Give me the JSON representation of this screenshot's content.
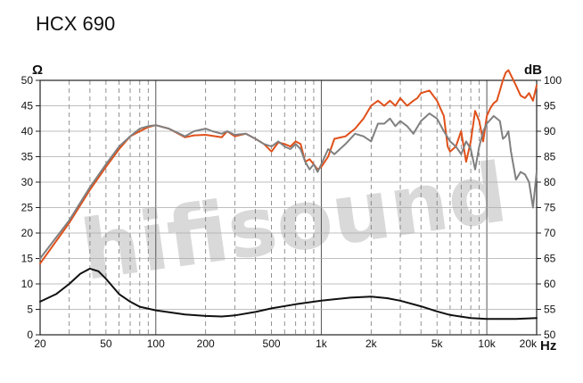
{
  "chart_data": {
    "type": "line",
    "title": "HCX 690",
    "watermark": "hifisound",
    "left_unit": "Ω",
    "right_unit": "dB",
    "x_unit": "Hz",
    "x_scale": "log",
    "xlim": [
      20,
      20000
    ],
    "y_left_lim": [
      0,
      50
    ],
    "y_right_lim": [
      50,
      100
    ],
    "x_ticks": [
      {
        "v": 20,
        "label": "20"
      },
      {
        "v": 50,
        "label": "50"
      },
      {
        "v": 100,
        "label": "100"
      },
      {
        "v": 200,
        "label": "200"
      },
      {
        "v": 500,
        "label": "500"
      },
      {
        "v": 1000,
        "label": "1k"
      },
      {
        "v": 2000,
        "label": "2k"
      },
      {
        "v": 5000,
        "label": "5k"
      },
      {
        "v": 10000,
        "label": "10k"
      },
      {
        "v": 20000,
        "label": "20k"
      }
    ],
    "y_left_ticks": [
      "0",
      "5",
      "10",
      "15",
      "20",
      "25",
      "30",
      "35",
      "40",
      "45",
      "50"
    ],
    "y_right_ticks": [
      "50",
      "55",
      "60",
      "65",
      "70",
      "75",
      "80",
      "85",
      "90",
      "95",
      "100"
    ],
    "grid": true,
    "series": [
      {
        "color": "#e0501a",
        "axis": "right",
        "x": [
          20,
          30,
          40,
          50,
          60,
          70,
          80,
          90,
          100,
          120,
          150,
          170,
          200,
          250,
          270,
          300,
          350,
          400,
          450,
          500,
          550,
          600,
          650,
          700,
          750,
          800,
          850,
          900,
          950,
          1000,
          1100,
          1200,
          1400,
          1600,
          1800,
          2000,
          2200,
          2400,
          2600,
          2800,
          3000,
          3300,
          3600,
          3800,
          4000,
          4500,
          5000,
          5500,
          5800,
          6000,
          6500,
          7000,
          7500,
          8000,
          8500,
          9000,
          9500,
          10000,
          10500,
          11000,
          11500,
          12000,
          12500,
          13000,
          13500,
          14000,
          15000,
          16000,
          17000,
          18000,
          19000,
          20000
        ],
        "values": [
          64,
          72,
          78.5,
          83,
          86.5,
          89,
          90,
          90.8,
          91.2,
          90.5,
          88.8,
          89.2,
          89.3,
          88.8,
          90,
          89,
          89.5,
          88.5,
          87.5,
          86,
          87.8,
          87.5,
          87,
          88,
          87.5,
          84,
          84.5,
          83.5,
          82.5,
          83,
          85,
          88.5,
          89,
          90.5,
          92.5,
          95,
          96,
          95,
          96,
          95,
          96.5,
          95,
          96,
          96.5,
          97.5,
          98,
          96,
          93,
          87,
          86,
          87,
          90,
          84,
          88,
          94,
          92,
          88,
          93,
          94.5,
          95.5,
          96,
          98,
          100,
          101.5,
          102,
          101,
          99,
          97,
          96.5,
          97.5,
          96,
          99
        ]
      },
      {
        "color": "#808080",
        "axis": "right",
        "x": [
          20,
          30,
          40,
          50,
          60,
          70,
          80,
          90,
          100,
          120,
          150,
          170,
          200,
          220,
          250,
          270,
          300,
          350,
          400,
          450,
          500,
          550,
          600,
          650,
          700,
          750,
          800,
          850,
          900,
          950,
          1000,
          1100,
          1200,
          1400,
          1600,
          1800,
          2000,
          2200,
          2400,
          2600,
          2800,
          3000,
          3300,
          3600,
          4000,
          4500,
          5000,
          5500,
          6000,
          6500,
          7000,
          7500,
          8000,
          8500,
          9000,
          9500,
          10000,
          11000,
          12000,
          12500,
          13000,
          13500,
          14000,
          15000,
          16000,
          17000,
          18000,
          19000,
          20000
        ],
        "values": [
          65,
          72.5,
          79,
          83.5,
          87,
          89,
          90.5,
          91,
          91.2,
          90.5,
          89,
          90,
          90.5,
          90,
          89.5,
          90,
          89.3,
          89.5,
          88.5,
          87.5,
          87,
          88,
          87,
          86.5,
          87.5,
          86.5,
          84,
          82.5,
          83.5,
          82,
          83.5,
          86.5,
          85.5,
          87.5,
          89.5,
          89,
          88,
          91.5,
          91.5,
          92.5,
          91,
          92,
          91,
          89.5,
          92,
          93.5,
          92.5,
          90,
          88,
          87,
          85.5,
          88,
          86.5,
          82.5,
          87,
          90,
          91.5,
          93,
          92,
          88.5,
          89,
          90,
          86,
          80.5,
          82,
          81.5,
          80,
          75,
          82
        ]
      },
      {
        "color": "#111111",
        "axis": "left",
        "x": [
          20,
          25,
          30,
          35,
          40,
          45,
          50,
          60,
          70,
          80,
          100,
          150,
          200,
          250,
          300,
          400,
          500,
          700,
          1000,
          1500,
          2000,
          2500,
          3000,
          4000,
          5000,
          6000,
          8000,
          10000,
          15000,
          20000
        ],
        "values": [
          6.5,
          8,
          10,
          12,
          13,
          12.5,
          11,
          8,
          6.5,
          5.5,
          4.8,
          4,
          3.7,
          3.6,
          3.8,
          4.5,
          5.2,
          6,
          6.7,
          7.3,
          7.5,
          7.2,
          6.7,
          5.6,
          4.6,
          3.9,
          3.3,
          3.1,
          3.1,
          3.3
        ]
      }
    ]
  }
}
